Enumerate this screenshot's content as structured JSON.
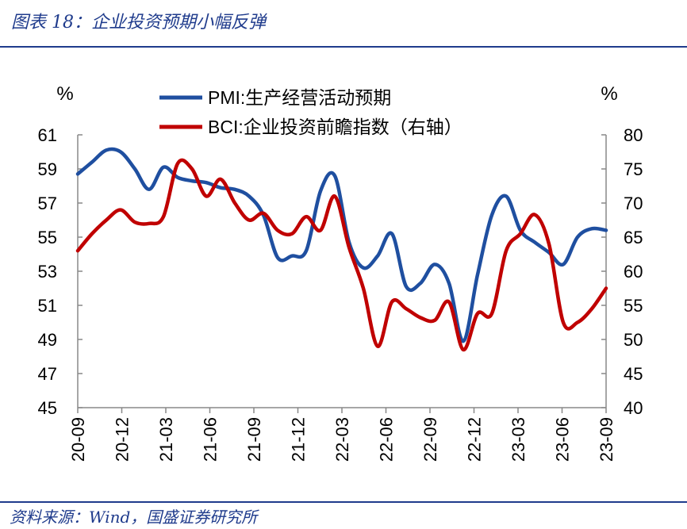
{
  "figure": {
    "title": "图表 18：企业投资预期小幅反弹",
    "source": "资料来源：Wind，国盛证券研究所"
  },
  "chart_data": {
    "type": "line",
    "title": "企业投资预期小幅反弹",
    "left_axis": {
      "unit": "%",
      "min": 45,
      "max": 61,
      "ticks": [
        "61",
        "59",
        "57",
        "55",
        "53",
        "51",
        "49",
        "47",
        "45"
      ]
    },
    "right_axis": {
      "unit": "%",
      "min": 40,
      "max": 80,
      "ticks": [
        "80",
        "75",
        "70",
        "65",
        "60",
        "55",
        "50",
        "45",
        "40"
      ]
    },
    "x_tick_labels": [
      "20-09",
      "20-12",
      "21-03",
      "21-06",
      "21-09",
      "21-12",
      "22-03",
      "22-06",
      "22-09",
      "22-12",
      "23-03",
      "23-06",
      "23-09"
    ],
    "colors": {
      "pmi": "#1f4fa0",
      "bci": "#c00000",
      "axis": "#888888"
    },
    "legend": [
      "PMI:生产经营活动预期",
      "BCI:企业投资前瞻指数（右轴）"
    ],
    "series": [
      {
        "name": "PMI:生产经营活动预期",
        "axis": "left",
        "color": "#1f4fa0",
        "points": [
          [
            "20-09",
            58.7
          ],
          [
            "20-10",
            59.4
          ],
          [
            "20-11",
            60.1
          ],
          [
            "20-12",
            60.0
          ],
          [
            "21-01",
            59.0
          ],
          [
            "21-02",
            57.8
          ],
          [
            "21-03",
            59.1
          ],
          [
            "21-04",
            58.5
          ],
          [
            "21-05",
            58.3
          ],
          [
            "21-06",
            58.2
          ],
          [
            "21-07",
            57.9
          ],
          [
            "21-08",
            57.8
          ],
          [
            "21-09",
            57.4
          ],
          [
            "21-10",
            56.3
          ],
          [
            "21-11",
            53.8
          ],
          [
            "21-12",
            53.9
          ],
          [
            "22-01",
            54.2
          ],
          [
            "22-02",
            57.7
          ],
          [
            "22-03",
            58.6
          ],
          [
            "22-04",
            54.7
          ],
          [
            "22-05",
            53.2
          ],
          [
            "22-06",
            53.9
          ],
          [
            "22-07",
            55.2
          ],
          [
            "22-08",
            52.1
          ],
          [
            "22-09",
            52.3
          ],
          [
            "22-10",
            53.4
          ],
          [
            "22-11",
            52.3
          ],
          [
            "22-12",
            48.9
          ],
          [
            "23-01",
            52.8
          ],
          [
            "23-02",
            56.3
          ],
          [
            "23-03",
            57.4
          ],
          [
            "23-04",
            55.4
          ],
          [
            "23-05",
            54.7
          ],
          [
            "23-06",
            54.1
          ],
          [
            "23-07",
            53.4
          ],
          [
            "23-08",
            55.0
          ],
          [
            "23-09",
            55.5
          ],
          [
            "23-09",
            55.4
          ]
        ]
      },
      {
        "name": "BCI:企业投资前瞻指数（右轴）",
        "axis": "right",
        "color": "#c00000",
        "points": [
          [
            "20-09",
            63.0
          ],
          [
            "20-10",
            65.5
          ],
          [
            "20-11",
            67.5
          ],
          [
            "20-12",
            69.0
          ],
          [
            "21-01",
            67.2
          ],
          [
            "21-02",
            67.0
          ],
          [
            "21-03",
            68.0
          ],
          [
            "21-04",
            75.8
          ],
          [
            "21-05",
            75.0
          ],
          [
            "21-06",
            71.0
          ],
          [
            "21-07",
            73.5
          ],
          [
            "21-08",
            70.0
          ],
          [
            "21-09",
            67.5
          ],
          [
            "21-10",
            68.5
          ],
          [
            "21-11",
            66.0
          ],
          [
            "21-12",
            65.5
          ],
          [
            "22-01",
            68.0
          ],
          [
            "22-02",
            66.0
          ],
          [
            "22-03",
            71.0
          ],
          [
            "22-04",
            63.5
          ],
          [
            "22-05",
            57.5
          ],
          [
            "22-06",
            49.0
          ],
          [
            "22-07",
            55.5
          ],
          [
            "22-08",
            54.5
          ],
          [
            "22-09",
            53.2
          ],
          [
            "22-10",
            52.8
          ],
          [
            "22-11",
            55.5
          ],
          [
            "22-12",
            48.5
          ],
          [
            "23-01",
            53.8
          ],
          [
            "23-02",
            53.8
          ],
          [
            "23-03",
            63.0
          ],
          [
            "23-04",
            65.5
          ],
          [
            "23-05",
            68.3
          ],
          [
            "23-06",
            64.0
          ],
          [
            "23-07",
            52.5
          ],
          [
            "23-08",
            52.5
          ],
          [
            "23-09",
            54.5
          ],
          [
            "23-09",
            57.5
          ]
        ]
      }
    ]
  }
}
